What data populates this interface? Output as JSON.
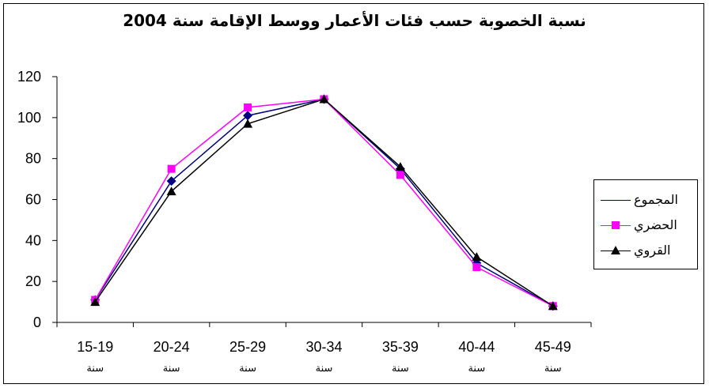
{
  "chart_data": {
    "type": "line",
    "title": "نسبة الخصوبة حسب فئات الأعمار ووسط الإقامة سنة 2004",
    "categories": [
      "15-19",
      "20-24",
      "25-29",
      "30-34",
      "35-39",
      "40-44",
      "45-49"
    ],
    "category_sub_label": "سنة",
    "ylim": [
      0,
      120
    ],
    "yticks": [
      0,
      20,
      40,
      60,
      80,
      100,
      120
    ],
    "grid": false,
    "legend_position": "right",
    "series": [
      {
        "name": "المجموع",
        "color": "#000080",
        "marker": "diamond",
        "values": [
          11,
          69,
          101,
          109,
          75,
          29,
          8
        ]
      },
      {
        "name": "الحضري",
        "color": "#ff00ff",
        "marker": "square",
        "values": [
          11,
          75,
          105,
          109,
          72,
          27,
          8
        ]
      },
      {
        "name": "القروي",
        "color": "#000000",
        "marker": "triangle",
        "values": [
          10,
          64,
          97,
          109,
          76,
          32,
          8
        ]
      }
    ]
  }
}
